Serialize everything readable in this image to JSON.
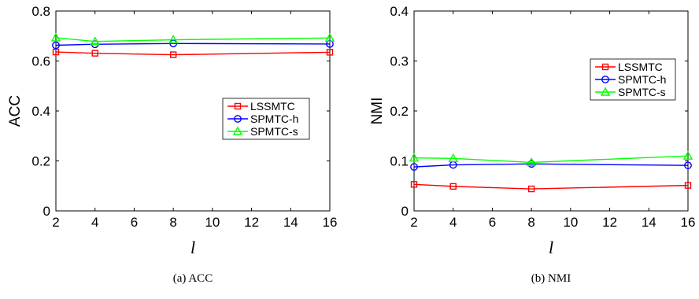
{
  "chart_data": [
    {
      "type": "line",
      "caption": "(a)  ACC",
      "xlabel": "l",
      "ylabel": "ACC",
      "x": [
        2,
        4,
        8,
        16
      ],
      "xticks": [
        2,
        4,
        6,
        8,
        10,
        12,
        14,
        16
      ],
      "yticks": [
        0,
        0.2,
        0.4,
        0.6,
        0.8
      ],
      "ytick_labels": [
        "0",
        "0.2",
        "0.4",
        "0.6",
        "0.8"
      ],
      "xlim": [
        2,
        16
      ],
      "ylim": [
        0,
        0.8
      ],
      "legend_position": "right-middle",
      "series": [
        {
          "name": "LSSMTC",
          "color": "#ff0000",
          "marker": "square",
          "values": [
            0.636,
            0.631,
            0.625,
            0.635
          ]
        },
        {
          "name": "SPMTC-h",
          "color": "#0000ff",
          "marker": "circle",
          "values": [
            0.663,
            0.667,
            0.67,
            0.668
          ]
        },
        {
          "name": "SPMTC-s",
          "color": "#00ff00",
          "marker": "triangle",
          "values": [
            0.693,
            0.678,
            0.685,
            0.692
          ]
        }
      ]
    },
    {
      "type": "line",
      "caption": "(b)  NMI",
      "xlabel": "l",
      "ylabel": "NMI",
      "x": [
        2,
        4,
        8,
        16
      ],
      "xticks": [
        2,
        4,
        6,
        8,
        10,
        12,
        14,
        16
      ],
      "yticks": [
        0,
        0.1,
        0.2,
        0.3,
        0.4
      ],
      "ytick_labels": [
        "0",
        "0.1",
        "0.2",
        "0.3",
        "0.4"
      ],
      "xlim": [
        2,
        16
      ],
      "ylim": [
        0,
        0.4
      ],
      "legend_position": "top-right",
      "series": [
        {
          "name": "LSSMTC",
          "color": "#ff0000",
          "marker": "square",
          "values": [
            0.053,
            0.049,
            0.044,
            0.051
          ]
        },
        {
          "name": "SPMTC-h",
          "color": "#0000ff",
          "marker": "circle",
          "values": [
            0.088,
            0.092,
            0.094,
            0.091
          ]
        },
        {
          "name": "SPMTC-s",
          "color": "#00ff00",
          "marker": "triangle",
          "values": [
            0.106,
            0.105,
            0.097,
            0.11
          ]
        }
      ]
    }
  ]
}
